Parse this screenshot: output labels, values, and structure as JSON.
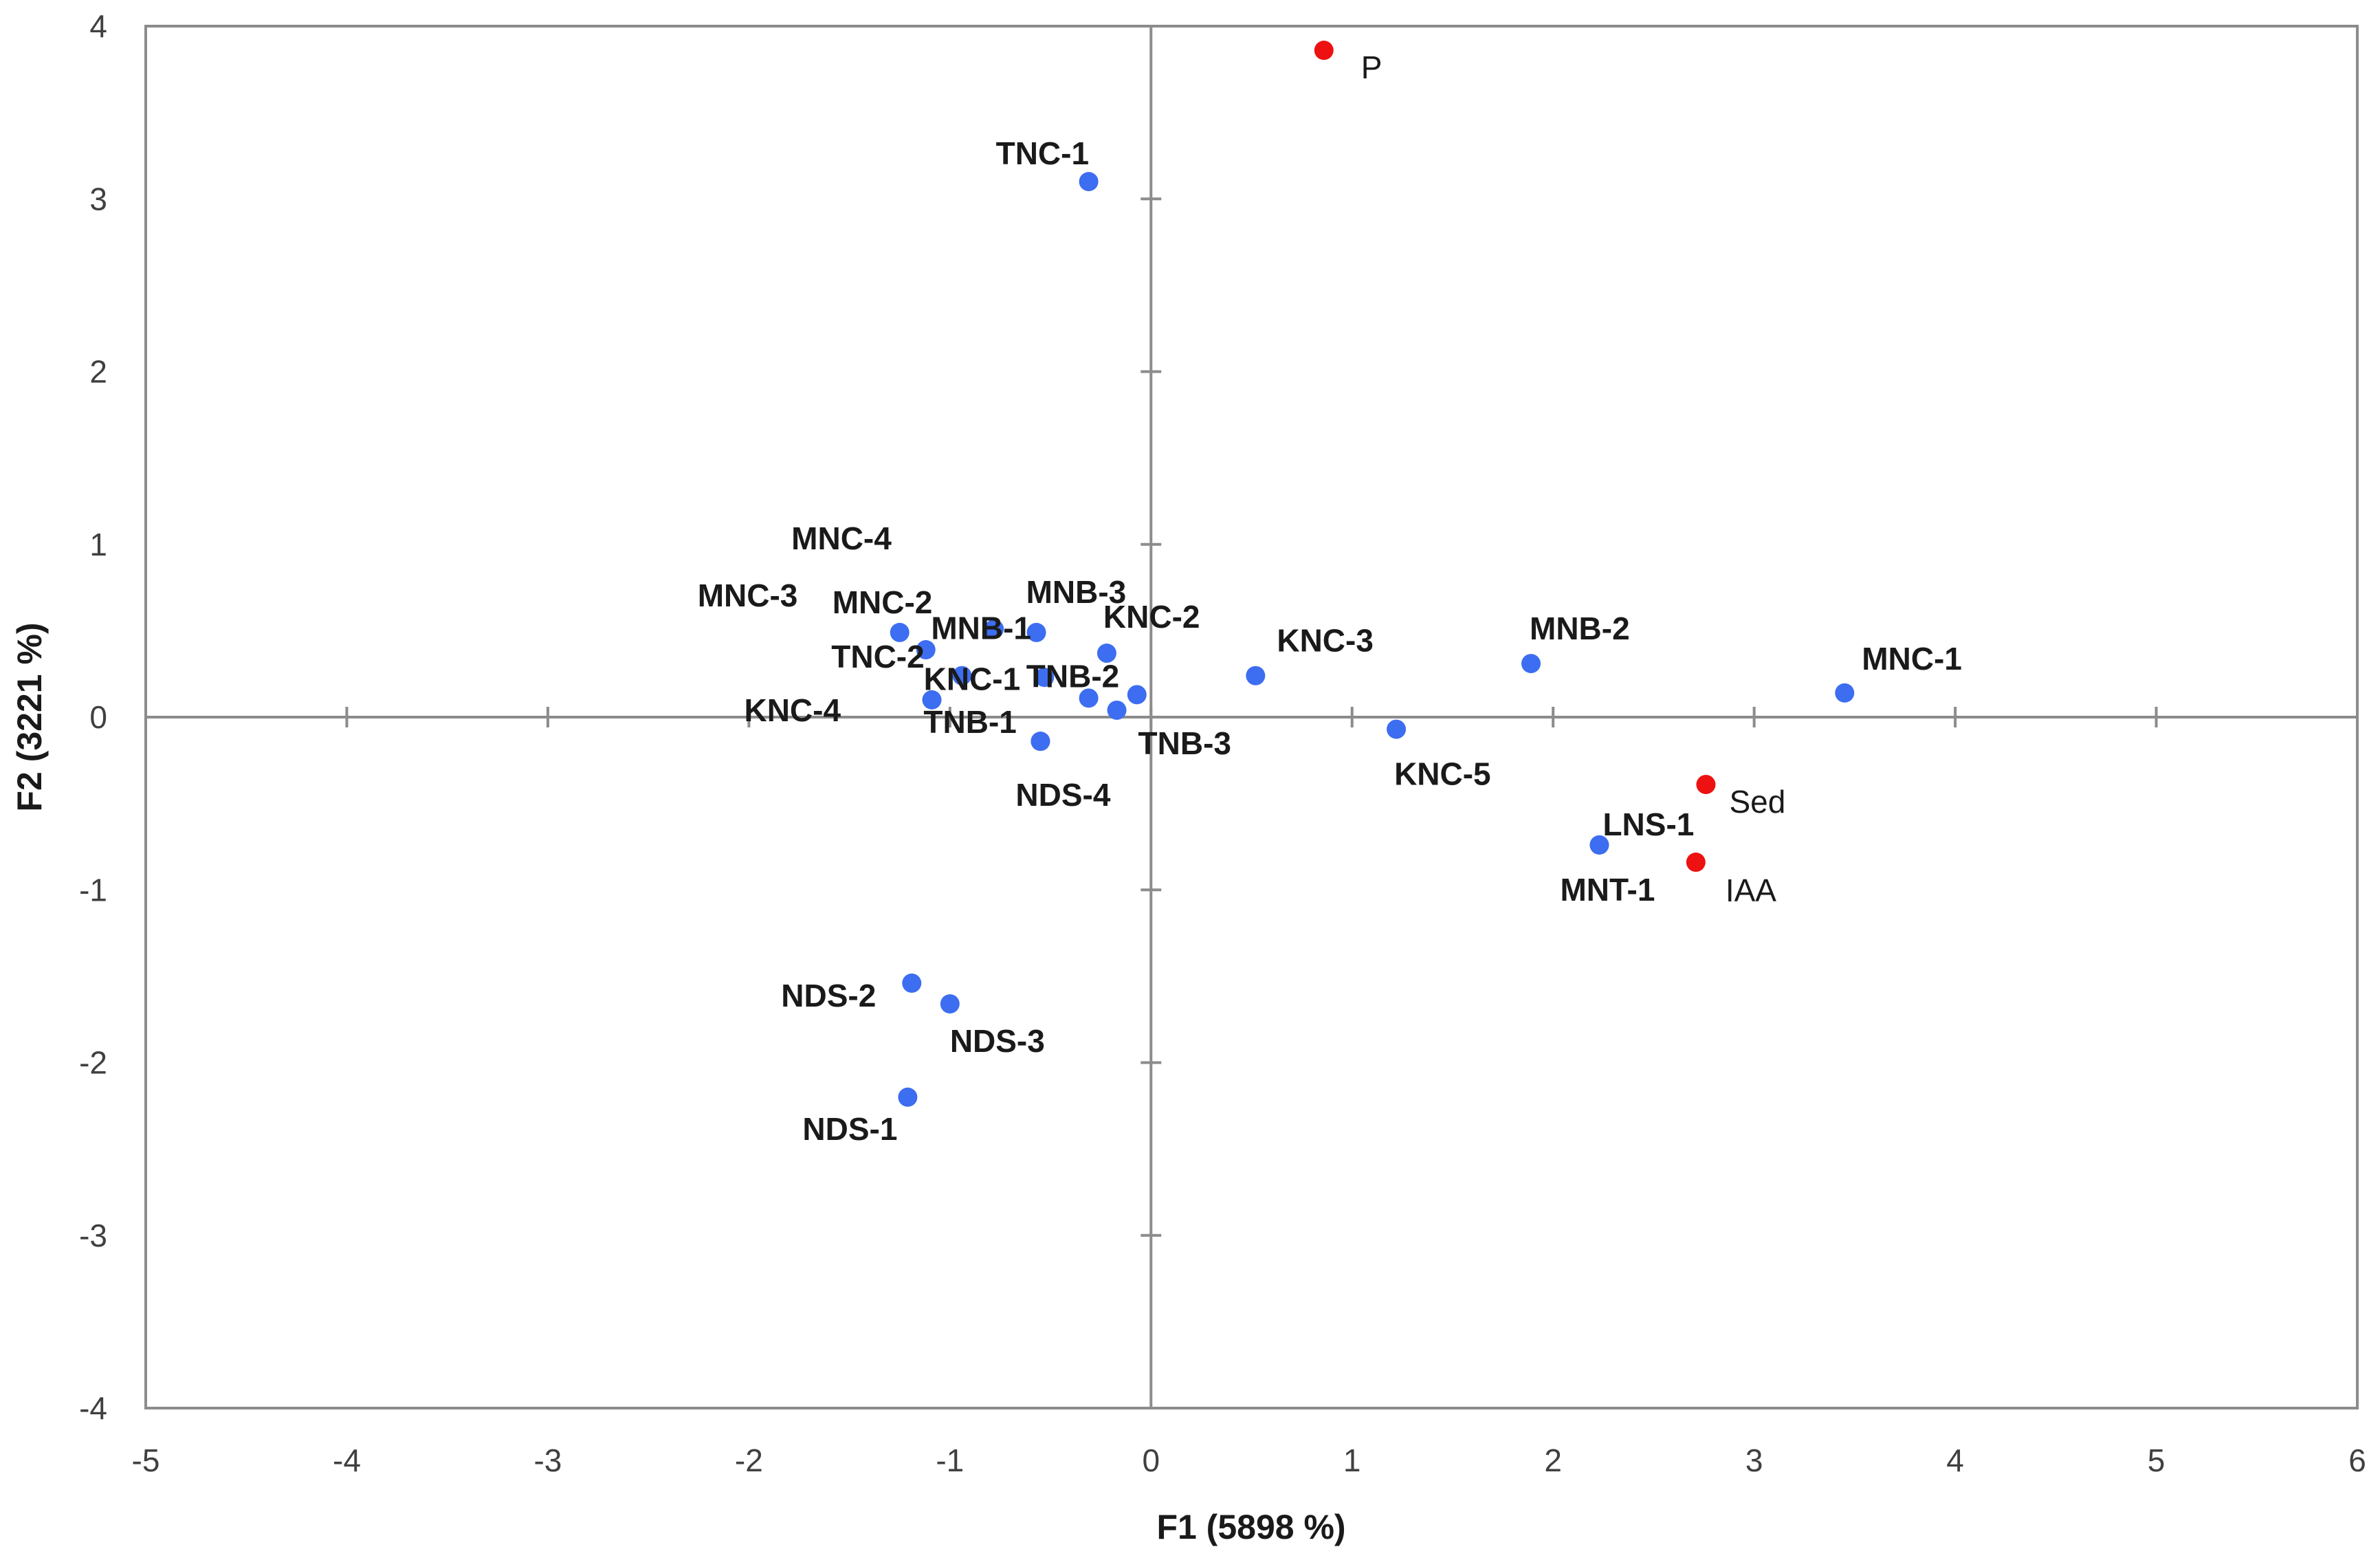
{
  "chart_data": {
    "type": "scatter",
    "title": "",
    "xlabel": "F1 (5898 %)",
    "ylabel": "F2 (3221 %)",
    "xlim": [
      -5,
      6
    ],
    "ylim": [
      -4,
      4
    ],
    "x_ticks": [
      -5,
      -4,
      -3,
      -2,
      -1,
      0,
      1,
      2,
      3,
      4,
      5,
      6
    ],
    "y_ticks": [
      -4,
      -3,
      -2,
      -1,
      0,
      1,
      2,
      3,
      4
    ],
    "grid": false,
    "colors": {
      "observations": "#3d6df0",
      "variables": "#ee1111",
      "axes": "#8c8c8c"
    },
    "series": [
      {
        "name": "observations",
        "color": "#3d6df0",
        "points": [
          {
            "label": "TNC-1",
            "x": -0.31,
            "y": 3.1
          },
          {
            "label": "MNC-4",
            "x": -0.78,
            "y": 0.51
          },
          {
            "label": "MNC-3",
            "x": -1.25,
            "y": 0.49
          },
          {
            "label": "MNC-2",
            "x": -1.12,
            "y": 0.39
          },
          {
            "label": "MNB-1",
            "x": -0.94,
            "y": 0.24
          },
          {
            "label": "MNB-3",
            "x": -0.57,
            "y": 0.49
          },
          {
            "label": "KNC-2",
            "x": -0.22,
            "y": 0.37
          },
          {
            "label": "TNC-2",
            "x": -0.53,
            "y": 0.23
          },
          {
            "label": "KNC-1",
            "x": -0.31,
            "y": 0.11
          },
          {
            "label": "TNB-2",
            "x": -0.07,
            "y": 0.13
          },
          {
            "label": "KNC-4",
            "x": -1.09,
            "y": 0.1
          },
          {
            "label": "TNB-1",
            "x": -0.55,
            "y": -0.14
          },
          {
            "label": "TNB-3",
            "x": -0.17,
            "y": 0.04
          },
          {
            "label": "NDS-4",
            "x": -0.55,
            "y": -0.14
          },
          {
            "label": "KNC-3",
            "x": 0.52,
            "y": 0.24
          },
          {
            "label": "KNC-5",
            "x": 1.22,
            "y": -0.07
          },
          {
            "label": "MNB-2",
            "x": 1.89,
            "y": 0.31
          },
          {
            "label": "MNC-1",
            "x": 3.45,
            "y": 0.14
          },
          {
            "label": "LNS-1",
            "x": 2.23,
            "y": -0.74
          },
          {
            "label": "MNT-1",
            "x": 2.23,
            "y": -0.74
          },
          {
            "label": "NDS-2",
            "x": -1.19,
            "y": -1.54
          },
          {
            "label": "NDS-3",
            "x": -1.0,
            "y": -1.66
          },
          {
            "label": "NDS-1",
            "x": -1.21,
            "y": -2.2
          }
        ]
      },
      {
        "name": "variables",
        "color": "#ee1111",
        "points": [
          {
            "label": "P",
            "x": 0.86,
            "y": 3.86
          },
          {
            "label": "Sed",
            "x": 2.76,
            "y": -0.39
          },
          {
            "label": "IAA",
            "x": 2.71,
            "y": -0.84
          }
        ]
      }
    ]
  }
}
